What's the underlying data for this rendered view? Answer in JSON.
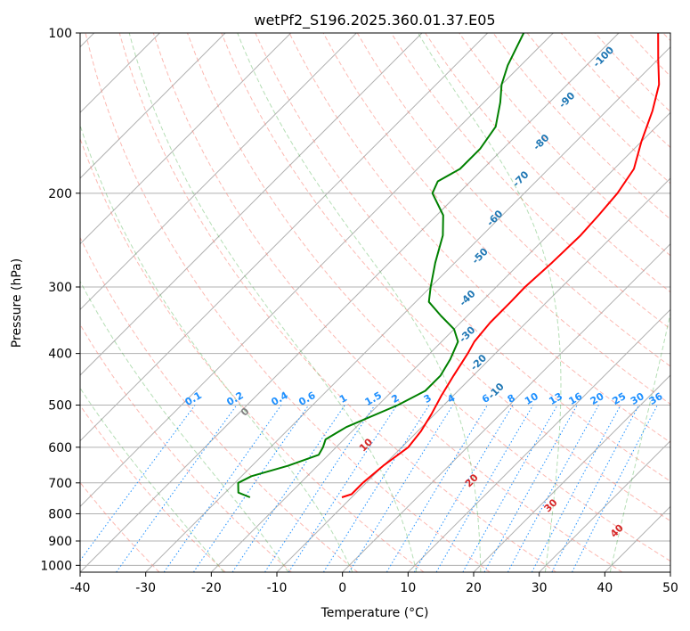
{
  "chart_data": {
    "type": "line",
    "title": "wetPf2_S196.2025.360.01.37.E05",
    "xlabel": "Temperature (°C)",
    "ylabel": "Pressure (hPa)",
    "xlim": [
      -40,
      50
    ],
    "ylim": [
      1030,
      100
    ],
    "x_scale": "linear",
    "y_scale": "log",
    "skew": "45 degrees",
    "grid": true,
    "xticks": [
      -40,
      -30,
      -20,
      -10,
      0,
      10,
      20,
      30,
      40,
      50
    ],
    "yticks": [
      100,
      200,
      300,
      400,
      500,
      600,
      700,
      800,
      900,
      1000
    ],
    "series": [
      {
        "name": "Temperature",
        "color": "#ff0000",
        "points": [
          {
            "p": 745,
            "t": -11.5
          },
          {
            "p": 735,
            "t": -10.5
          },
          {
            "p": 700,
            "t": -10.5
          },
          {
            "p": 650,
            "t": -10
          },
          {
            "p": 600,
            "t": -9.0
          },
          {
            "p": 560,
            "t": -9.5
          },
          {
            "p": 520,
            "t": -10.5
          },
          {
            "p": 480,
            "t": -11.8
          },
          {
            "p": 440,
            "t": -13.0
          },
          {
            "p": 400,
            "t": -14.2
          },
          {
            "p": 380,
            "t": -15.0
          },
          {
            "p": 350,
            "t": -15.5
          },
          {
            "p": 320,
            "t": -15.5
          },
          {
            "p": 300,
            "t": -15.6
          },
          {
            "p": 270,
            "t": -15.2
          },
          {
            "p": 240,
            "t": -15.0
          },
          {
            "p": 220,
            "t": -15.3
          },
          {
            "p": 200,
            "t": -15.8
          },
          {
            "p": 180,
            "t": -17.0
          },
          {
            "p": 160,
            "t": -20.0
          },
          {
            "p": 140,
            "t": -23.0
          },
          {
            "p": 125,
            "t": -26.0
          },
          {
            "p": 112,
            "t": -30.0
          },
          {
            "p": 100,
            "t": -34.0
          }
        ]
      },
      {
        "name": "Dewpoint",
        "color": "#008000",
        "points": [
          {
            "p": 745,
            "t": -25.5
          },
          {
            "p": 730,
            "t": -28.0
          },
          {
            "p": 700,
            "t": -29.5
          },
          {
            "p": 680,
            "t": -28.5
          },
          {
            "p": 650,
            "t": -24.5
          },
          {
            "p": 620,
            "t": -21.5
          },
          {
            "p": 600,
            "t": -22.0
          },
          {
            "p": 580,
            "t": -22.8
          },
          {
            "p": 550,
            "t": -21.5
          },
          {
            "p": 500,
            "t": -17.0
          },
          {
            "p": 470,
            "t": -15.0
          },
          {
            "p": 440,
            "t": -15.0
          },
          {
            "p": 410,
            "t": -16.0
          },
          {
            "p": 380,
            "t": -17.5
          },
          {
            "p": 360,
            "t": -20.0
          },
          {
            "p": 340,
            "t": -24.0
          },
          {
            "p": 320,
            "t": -28.0
          },
          {
            "p": 300,
            "t": -30.0
          },
          {
            "p": 270,
            "t": -33.0
          },
          {
            "p": 240,
            "t": -36.0
          },
          {
            "p": 220,
            "t": -39.0
          },
          {
            "p": 200,
            "t": -44.0
          },
          {
            "p": 190,
            "t": -45.0
          },
          {
            "p": 180,
            "t": -43.5
          },
          {
            "p": 165,
            "t": -43.5
          },
          {
            "p": 150,
            "t": -44.5
          },
          {
            "p": 135,
            "t": -47.5
          },
          {
            "p": 125,
            "t": -50.0
          },
          {
            "p": 115,
            "t": -52.0
          },
          {
            "p": 100,
            "t": -54.5
          }
        ]
      }
    ],
    "annotations": {
      "theta_labels": {
        "color": "#1f77b4",
        "items": [
          {
            "text": "-100",
            "t": -38.0,
            "p": 112
          },
          {
            "text": "-90",
            "t": -37.0,
            "p": 135
          },
          {
            "text": "-80",
            "t": -34.5,
            "p": 162
          },
          {
            "text": "-70",
            "t": -32.0,
            "p": 190
          },
          {
            "text": "-60",
            "t": -30.0,
            "p": 225
          },
          {
            "text": "-50",
            "t": -26.5,
            "p": 265
          },
          {
            "text": "-40",
            "t": -22.0,
            "p": 318
          },
          {
            "text": "-30",
            "t": -16.5,
            "p": 372
          },
          {
            "text": "-20",
            "t": -10.5,
            "p": 420
          },
          {
            "text": "-10",
            "t": -3.5,
            "p": 475
          }
        ]
      },
      "mixing_ratio_labels": {
        "color": "#1e90ff",
        "items": [
          "0.1",
          "0.2",
          "0.4",
          "0.6",
          "1",
          "1.5",
          "2",
          "3",
          "4",
          "6",
          "8",
          "10",
          "13",
          "16",
          "20",
          "25",
          "30",
          "36"
        ]
      },
      "moist_adiabat_labels": {
        "color": "#d62728",
        "items": [
          {
            "text": "0",
            "t": 0,
            "color": "#808080"
          },
          {
            "text": "10",
            "t": 10,
            "color": "#d62728"
          },
          {
            "text": "20",
            "t": 20,
            "color": "#d62728"
          },
          {
            "text": "30",
            "t": 30,
            "color": "#d62728"
          },
          {
            "text": "40",
            "t": 40,
            "color": "#d62728"
          }
        ]
      }
    }
  }
}
